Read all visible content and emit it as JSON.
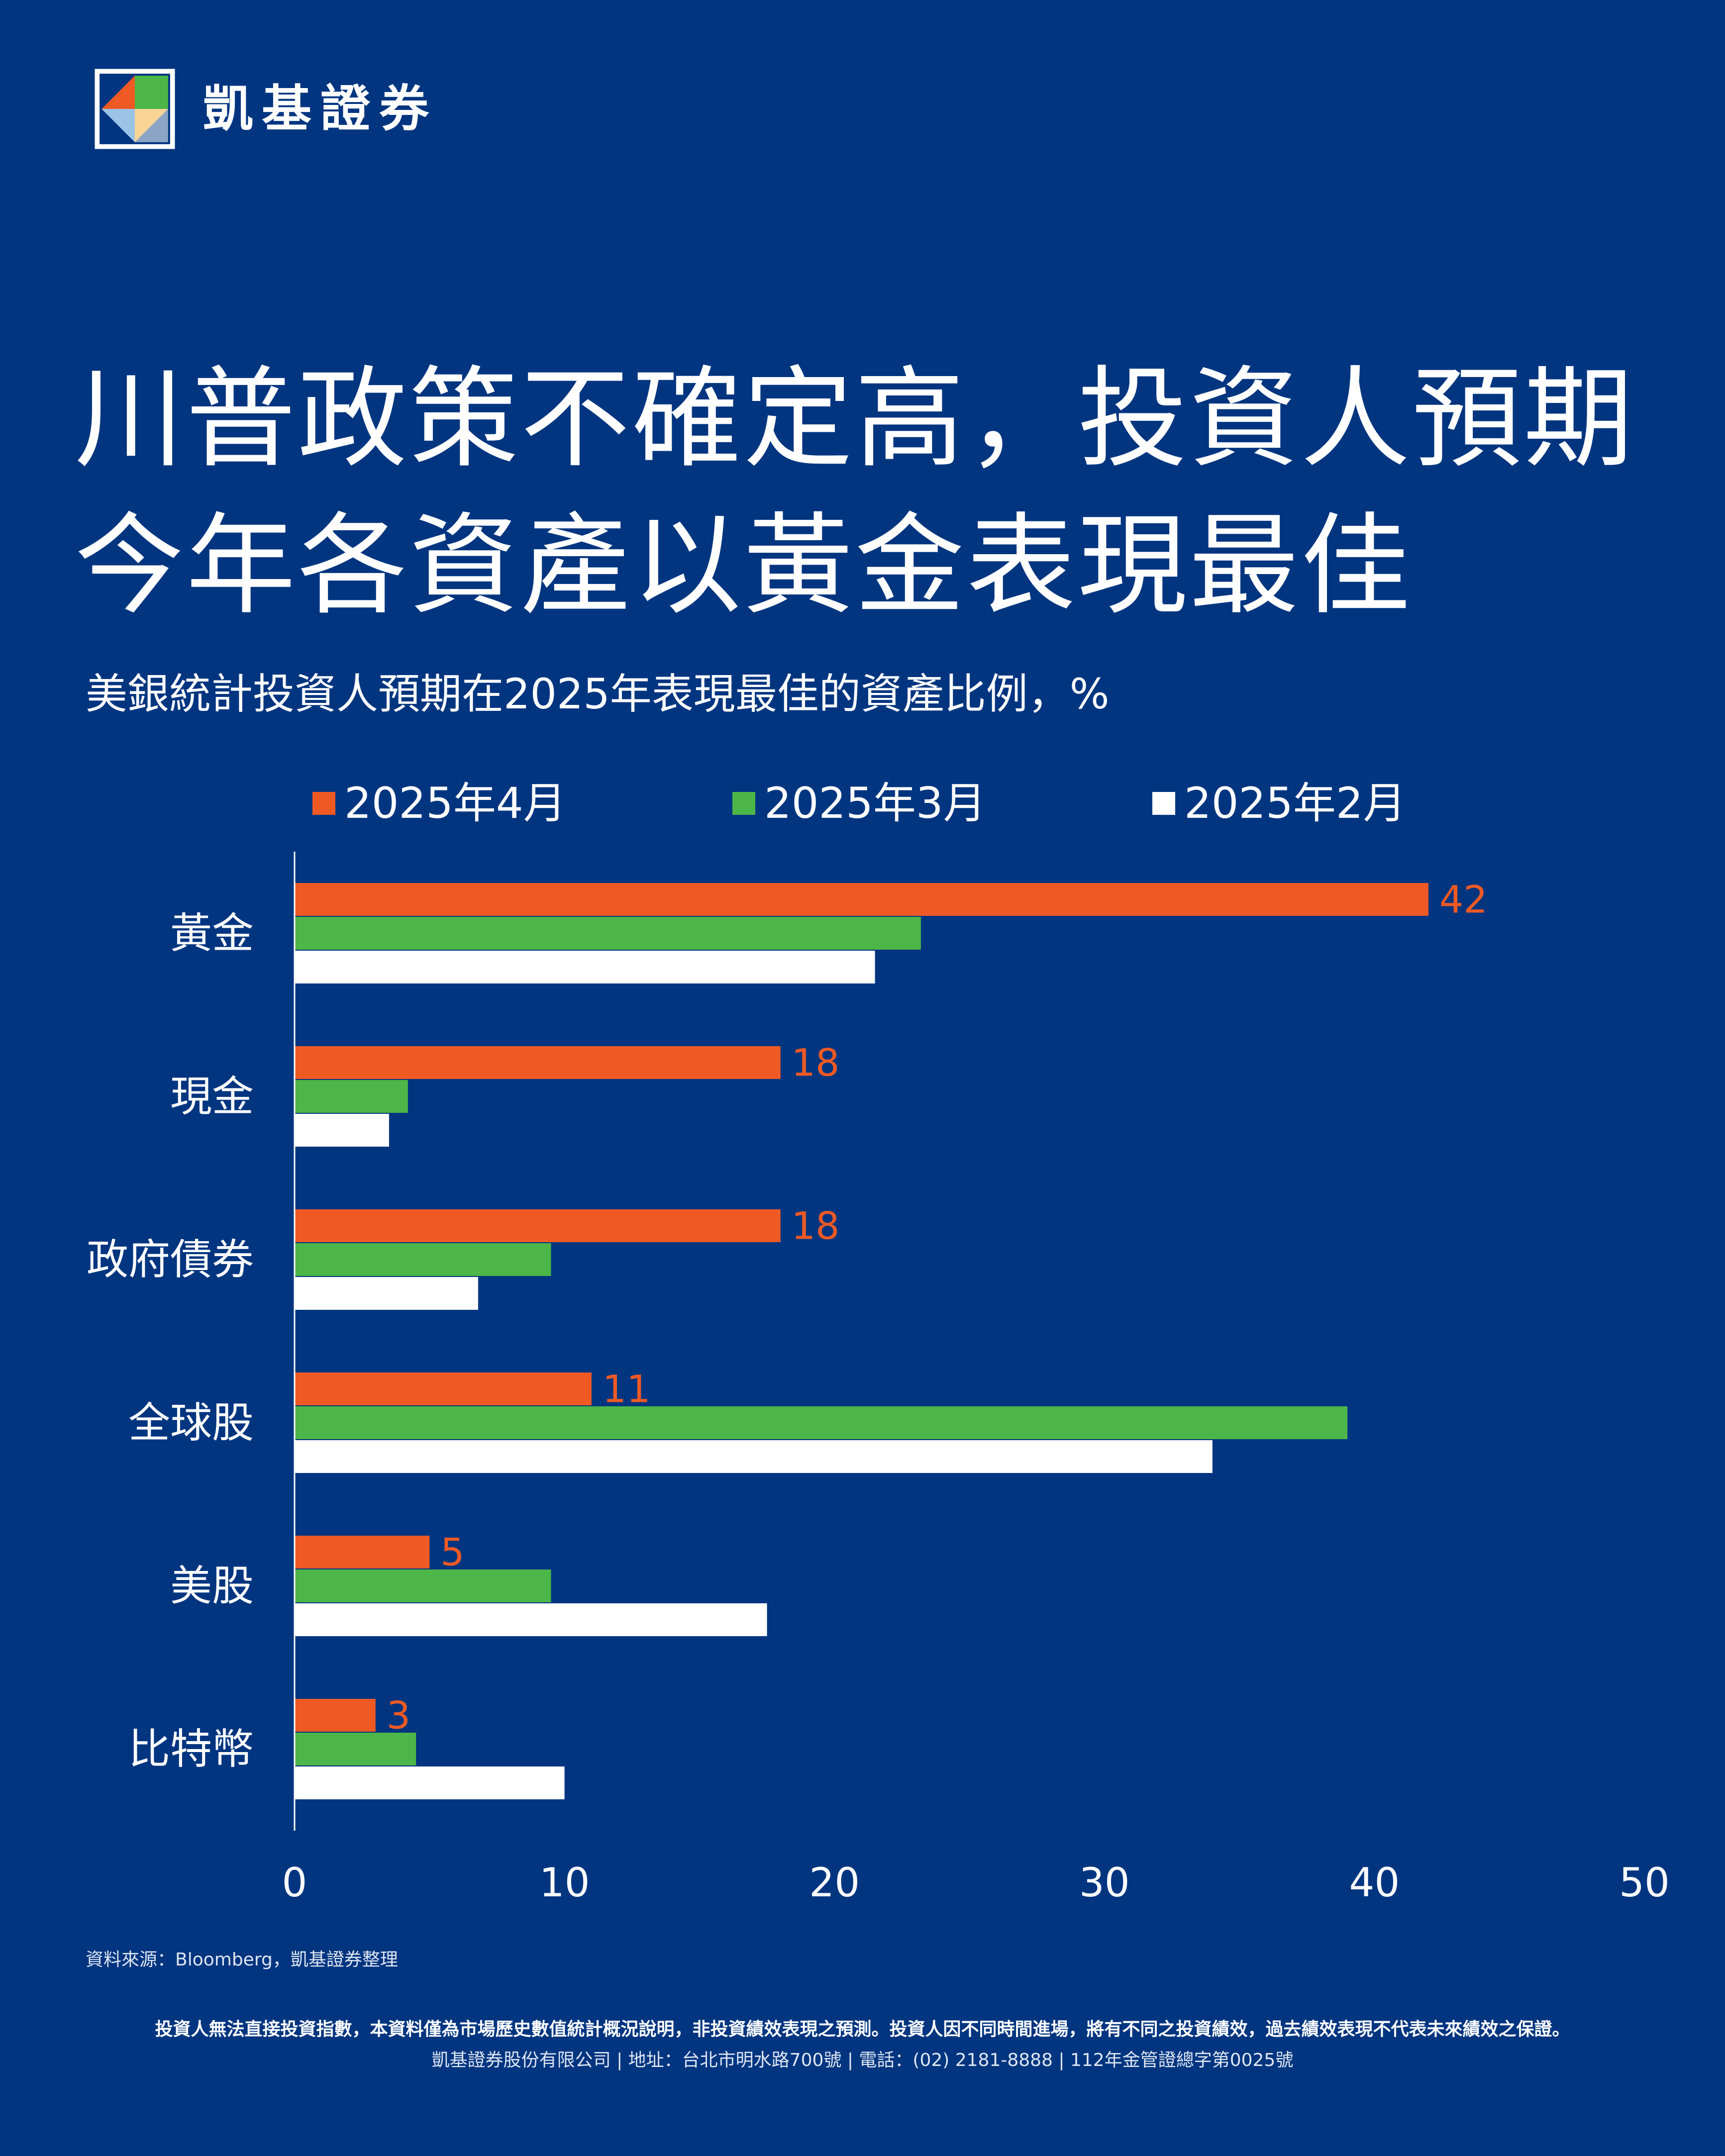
{
  "brand": {
    "name": "凱基證券",
    "logo_icon": "kgi-logo-icon",
    "colors": {
      "orange": "#ef5a24",
      "green": "#4db648",
      "white": "#ffffff",
      "navy": "#013580",
      "light_blue": "#9bc3e6"
    }
  },
  "title_lines": [
    "川普政策不確定高，投資人預期",
    "今年各資產以黃金表現最佳"
  ],
  "subtitle": "美銀統計投資人預期在2025年表現最佳的資產比例，%",
  "legend": [
    {
      "label": "2025年4月",
      "color": "#ef5a24"
    },
    {
      "label": "2025年3月",
      "color": "#4db648"
    },
    {
      "label": "2025年2月",
      "color": "#ffffff"
    }
  ],
  "chart_data": {
    "type": "bar",
    "orientation": "horizontal",
    "categories": [
      "黃金",
      "現金",
      "政府債券",
      "全球股",
      "美股",
      "比特幣"
    ],
    "series": [
      {
        "name": "2025年4月",
        "color": "#ef5a24",
        "values": [
          42,
          18,
          18,
          11,
          5,
          3
        ]
      },
      {
        "name": "2025年3月",
        "color": "#4db648",
        "values": [
          23.2,
          4.2,
          9.5,
          39,
          9.5,
          4.5
        ]
      },
      {
        "name": "2025年2月",
        "color": "#ffffff",
        "values": [
          21.5,
          3.5,
          6.8,
          34,
          17.5,
          10
        ]
      }
    ],
    "data_labels": [
      "42",
      "18",
      "18",
      "11",
      "5",
      "3"
    ],
    "data_label_series": "2025年4月",
    "xlim": [
      0,
      50
    ],
    "xticks": [
      "0",
      "10",
      "20",
      "30",
      "40",
      "50"
    ],
    "grid": false,
    "legend_position": "top"
  },
  "source": "資料來源：Bloomberg，凱基證券整理",
  "disclaimer": "投資人無法直接投資指數，本資料僅為市場歷史數值統計概況說明，非投資績效表現之預測。投資人因不同時間進場，將有不同之投資績效，過去績效表現不代表未來績效之保證。",
  "company_info": "凱基證券股份有限公司 | 地址：台北市明水路700號 | 電話：(02) 2181-8888 | 112年金管證總字第0025號"
}
